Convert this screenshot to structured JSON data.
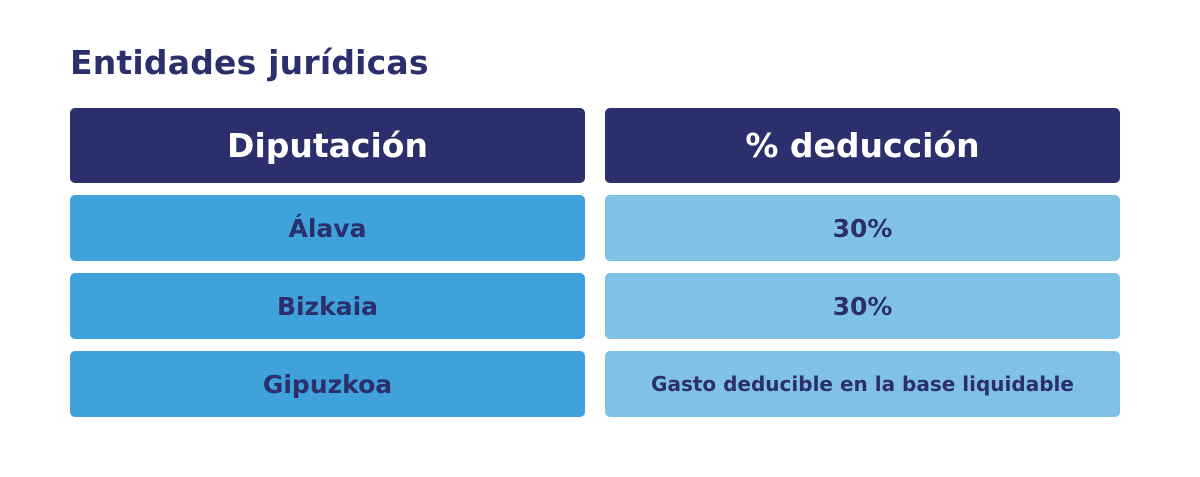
{
  "title": "Entidades jurídicas",
  "table": {
    "headers": [
      "Diputación",
      "% deducción"
    ],
    "rows": [
      {
        "diputacion": "Álava",
        "deduccion": "30%"
      },
      {
        "diputacion": "Bizkaia",
        "deduccion": "30%"
      },
      {
        "diputacion": "Gipuzkoa",
        "deduccion": "Gasto deducible en la base liquidable"
      }
    ]
  },
  "colors": {
    "header_bg": "#2b2f6c",
    "left_cell_bg": "#3fa2db",
    "right_cell_bg": "#80c2e5",
    "text_dark": "#2b2f6c"
  }
}
